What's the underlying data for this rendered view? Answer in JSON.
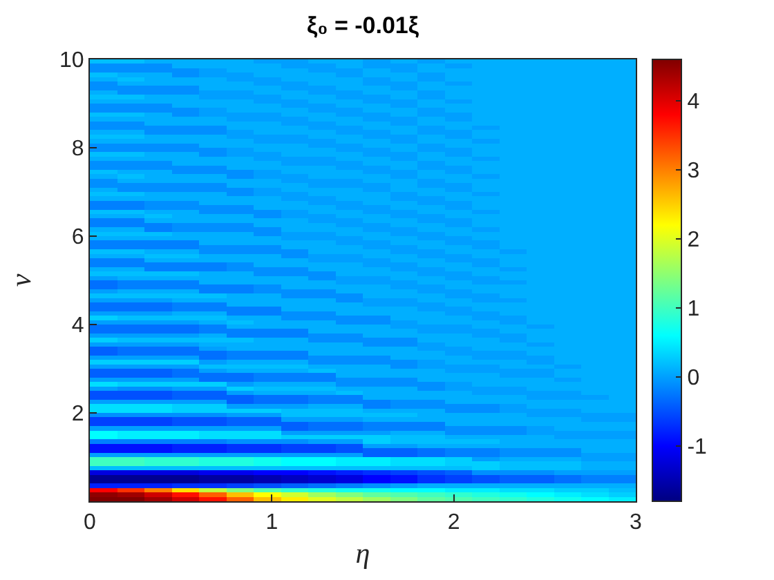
{
  "chart_data": {
    "type": "heatmap",
    "title": "ξ₀ = -0.01ξ",
    "xlabel": "η",
    "ylabel": "ν",
    "x": [
      0.075,
      0.225,
      0.375,
      0.525,
      0.675,
      0.825,
      0.975,
      1.125,
      1.275,
      1.425,
      1.575,
      1.725,
      1.875,
      2.025,
      2.175,
      2.325,
      2.475,
      2.625,
      2.775,
      2.925
    ],
    "xlim": [
      0,
      3
    ],
    "ylim": [
      0,
      10
    ],
    "xticks": [
      0,
      1,
      2,
      3
    ],
    "yticks": [
      2,
      4,
      6,
      8,
      10
    ],
    "clim": [
      -1.8,
      4.6
    ],
    "cticks": [
      -1,
      0,
      1,
      2,
      3,
      4
    ],
    "cells": [
      [
        0.2,
        0.2,
        0.1,
        0.1,
        0.1,
        0.1,
        0,
        0,
        0.1,
        0.1,
        0,
        0.1,
        0,
        0.1,
        0.1,
        0.1,
        0.1,
        0.1,
        0.1,
        0.1
      ],
      [
        -0.1,
        -0.1,
        -0.1,
        0.1,
        0.1,
        0.1,
        0.1,
        0,
        0,
        0.1,
        0,
        0,
        0.1,
        0,
        0.1,
        0.1,
        0.1,
        0.1,
        0.1,
        0.1
      ],
      [
        -0.1,
        -0.1,
        -0.1,
        -0.1,
        0,
        0.1,
        0.1,
        0.1,
        0,
        0,
        0.1,
        0,
        0.1,
        0.1,
        0.1,
        0.1,
        0.1,
        0.1,
        0.1,
        0.1
      ],
      [
        0.2,
        0.1,
        0.1,
        -0.1,
        0,
        0,
        0.1,
        0.1,
        0.1,
        0,
        0.1,
        0.1,
        0,
        0.1,
        0.1,
        0.1,
        0.1,
        0.1,
        0.1,
        0.1
      ],
      [
        0.1,
        0.2,
        0.1,
        0.1,
        0.1,
        0,
        0,
        0.1,
        0.1,
        0.1,
        0,
        0.1,
        0,
        0.1,
        0.1,
        0.1,
        0.1,
        0.1,
        0.1,
        0.1
      ],
      [
        -0.1,
        0.1,
        0.1,
        0.1,
        0.1,
        0.1,
        0,
        0,
        0.1,
        0.1,
        0,
        0,
        0.1,
        0,
        0.1,
        0.1,
        0.1,
        0.1,
        0.1,
        0.1
      ],
      [
        -0.1,
        -0.1,
        -0.1,
        -0.1,
        0.1,
        0.1,
        0.1,
        0,
        0,
        0.1,
        0.1,
        0,
        0.1,
        0.1,
        0.1,
        0.1,
        0.1,
        0.1,
        0.1,
        0.1
      ],
      [
        0.1,
        -0.1,
        -0.1,
        -0.1,
        0,
        0,
        0.1,
        0.1,
        0,
        0,
        0.1,
        0.1,
        0,
        0.1,
        0.1,
        0.1,
        0.1,
        0.1,
        0.1,
        0.1
      ],
      [
        0.2,
        0.2,
        0.1,
        0.1,
        0,
        0,
        0,
        0.1,
        0.1,
        0,
        0,
        0.1,
        0,
        0.1,
        0.1,
        0.1,
        0.1,
        0.1,
        0.1,
        0.1
      ],
      [
        0.1,
        0.1,
        0.1,
        0.1,
        0.1,
        0.1,
        0,
        0,
        0.1,
        0.1,
        0,
        0,
        0.1,
        0,
        0.1,
        0.1,
        0.1,
        0.1,
        0.1,
        0.1
      ],
      [
        -0.1,
        -0.1,
        -0.1,
        0.1,
        0.1,
        0.1,
        0.1,
        0,
        0,
        0.1,
        0.1,
        0,
        0.1,
        0.1,
        0.1,
        0.1,
        0.1,
        0.1,
        0.1,
        0.1
      ],
      [
        -0.1,
        -0.1,
        -0.1,
        -0.1,
        0,
        0.1,
        0.1,
        0.1,
        0,
        0,
        0.1,
        0.1,
        0,
        0.1,
        0.1,
        0.1,
        0.1,
        0.1,
        0.1,
        0.1
      ],
      [
        0.2,
        0.2,
        0.1,
        -0.1,
        0,
        0,
        0,
        0.1,
        0.1,
        0,
        0,
        0.1,
        0,
        0,
        0.1,
        0.1,
        0.1,
        0.1,
        0.1,
        0.1
      ],
      [
        0.1,
        0.1,
        0.1,
        0.1,
        0.1,
        0,
        0,
        0,
        0.1,
        0.1,
        0,
        0,
        0.1,
        0,
        0.1,
        0.1,
        0.1,
        0.1,
        0.1,
        0.1
      ],
      [
        -0.1,
        -0.1,
        0.1,
        0.1,
        0.1,
        0.1,
        0.1,
        0,
        0,
        0.1,
        0.1,
        0,
        0.1,
        0.1,
        0.1,
        0.1,
        0.1,
        0.1,
        0.1,
        0.1
      ],
      [
        -0.1,
        -0.1,
        -0.1,
        -0.1,
        -0.1,
        0.1,
        0.1,
        0.1,
        0,
        0,
        0.1,
        0.1,
        0,
        0.1,
        0,
        0.1,
        0.1,
        0.1,
        0.1,
        0.1
      ],
      [
        0.1,
        0.1,
        -0.1,
        -0.1,
        -0.1,
        0,
        0.1,
        0.1,
        0.1,
        0,
        0,
        0.1,
        0,
        0,
        0.1,
        0.1,
        0.1,
        0.1,
        0.1,
        0.1
      ],
      [
        0.2,
        0.2,
        0.1,
        0.1,
        0.1,
        0,
        0,
        0,
        0.1,
        0.1,
        0,
        0,
        0.1,
        0,
        0.1,
        0.1,
        0.1,
        0.1,
        0.1,
        0.1
      ],
      [
        0.1,
        0.1,
        0.1,
        0.1,
        0.1,
        0.1,
        0,
        0,
        0,
        0.1,
        0.1,
        0,
        0.1,
        0.1,
        0,
        0.1,
        0.1,
        0.1,
        0.1,
        0.1
      ],
      [
        -0.1,
        -0.1,
        -0.1,
        -0.1,
        0.1,
        0.1,
        0.1,
        0.1,
        0,
        0,
        0.1,
        0.1,
        0,
        0.1,
        0.1,
        0.1,
        0.1,
        0.1,
        0.1,
        0.1
      ],
      [
        -0.1,
        -0.1,
        -0.1,
        -0.1,
        -0.1,
        0,
        0.1,
        0.1,
        0.1,
        0,
        0,
        0.1,
        0,
        0,
        0.1,
        0.1,
        0.1,
        0.1,
        0.1,
        0.1
      ],
      [
        0.2,
        0.2,
        0.1,
        0.1,
        -0.1,
        0,
        0,
        0.1,
        0.1,
        0.1,
        0,
        0,
        0.1,
        0,
        0.1,
        0.1,
        0.1,
        0.1,
        0.1,
        0.1
      ],
      [
        0.1,
        0.1,
        0.1,
        0.1,
        0.1,
        0.1,
        0,
        0,
        0,
        0.1,
        0.1,
        0,
        0.1,
        0.1,
        0,
        0.1,
        0.1,
        0.1,
        0.1,
        0.1
      ],
      [
        -0.1,
        -0.1,
        -0.1,
        0.1,
        0.1,
        0.1,
        0.1,
        0,
        0,
        0,
        0.1,
        0.1,
        0,
        0.1,
        0.1,
        0.1,
        0.1,
        0.1,
        0.1,
        0.1
      ],
      [
        -0.1,
        -0.1,
        -0.1,
        -0.1,
        -0.1,
        0.1,
        0.1,
        0.1,
        0.1,
        0,
        0,
        0.1,
        0,
        0,
        0.1,
        0.1,
        0.1,
        0.1,
        0.1,
        0.1
      ],
      [
        0.2,
        0.1,
        0.1,
        -0.1,
        -0.1,
        -0.1,
        0,
        0.1,
        0.1,
        0.1,
        0,
        0,
        0.1,
        0,
        0.1,
        0.1,
        0.1,
        0.1,
        0.1,
        0.1
      ],
      [
        0.1,
        0.2,
        0.1,
        0.1,
        0.1,
        -0.1,
        0,
        0,
        0.1,
        0.1,
        0.1,
        0,
        0.1,
        0.1,
        0,
        0.1,
        0.1,
        0.1,
        0.1,
        0.1
      ],
      [
        -0.1,
        0.1,
        0.1,
        0.1,
        0.1,
        0.1,
        0.1,
        0,
        0,
        0,
        0.1,
        0.1,
        0,
        0.1,
        0.1,
        0.1,
        0.1,
        0.1,
        0.1,
        0.1
      ],
      [
        -0.1,
        -0.1,
        -0.1,
        -0.1,
        -0.1,
        0.1,
        0.1,
        0.1,
        0,
        0,
        0,
        0.1,
        0,
        0,
        0.1,
        0.1,
        0.1,
        0.1,
        0.1,
        0.1
      ],
      [
        0.1,
        -0.1,
        -0.1,
        -0.1,
        -0.1,
        -0.1,
        0,
        0.1,
        0.1,
        0.1,
        0,
        0.1,
        0.1,
        0,
        0.1,
        0.1,
        0.1,
        0.1,
        0.1,
        0.1
      ],
      [
        0.2,
        0.2,
        0.1,
        0.1,
        0.1,
        -0.1,
        0,
        0,
        0.1,
        0.1,
        0.1,
        0,
        0.1,
        0.1,
        0,
        0.1,
        0.1,
        0.1,
        0.1,
        0.1
      ],
      [
        0.1,
        0.1,
        0.1,
        0.1,
        0.1,
        0.1,
        0.1,
        0,
        0,
        0.1,
        0.1,
        0,
        0,
        0.1,
        0.1,
        0.1,
        0.1,
        0.1,
        0.1,
        0.1
      ],
      [
        -0.2,
        -0.2,
        -0.1,
        -0.1,
        0.1,
        0.1,
        0.1,
        0.1,
        0,
        0,
        0.1,
        0.1,
        0,
        0,
        0.1,
        0.1,
        0.1,
        0.1,
        0.1,
        0.1
      ],
      [
        -0.2,
        -0.2,
        -0.1,
        -0.1,
        -0.1,
        -0.1,
        0.1,
        0.1,
        0.1,
        0,
        0,
        0.1,
        0.1,
        0,
        0.1,
        0.1,
        0.1,
        0.1,
        0.1,
        0.1
      ],
      [
        0.2,
        0.2,
        0.1,
        0.1,
        -0.1,
        -0.1,
        -0.1,
        0,
        0.1,
        0.1,
        0,
        0,
        0.1,
        0.1,
        0,
        0.1,
        0.1,
        0.1,
        0.1,
        0.1
      ],
      [
        0.1,
        0.1,
        0.2,
        0.1,
        0.1,
        0.1,
        -0.1,
        0,
        0,
        0.1,
        0.1,
        0,
        0,
        0.1,
        0.1,
        0.1,
        0.1,
        0.1,
        0.1,
        0.1
      ],
      [
        -0.2,
        -0.2,
        0.1,
        0.1,
        0.1,
        0.1,
        0.1,
        0.1,
        0,
        0,
        0.1,
        0.1,
        0,
        0,
        0.1,
        0.1,
        0.1,
        0.1,
        0.1,
        0.1
      ],
      [
        -0.2,
        -0.2,
        -0.2,
        -0.1,
        -0.1,
        -0.1,
        0.1,
        0.1,
        0.1,
        0,
        0,
        0.1,
        0.1,
        0,
        0.1,
        0.1,
        0.1,
        0.1,
        0.1,
        0.1
      ],
      [
        0.1,
        0.1,
        -0.2,
        -0.1,
        -0.1,
        -0.1,
        -0.1,
        0.1,
        0.1,
        0.1,
        0,
        0,
        0.1,
        0.1,
        0,
        0.1,
        0.1,
        0.1,
        0.1,
        0.1
      ],
      [
        0.2,
        0.2,
        0.2,
        0.1,
        0.1,
        0.1,
        -0.1,
        0,
        0,
        0.1,
        0.1,
        0,
        0,
        0.1,
        0.1,
        0.1,
        0.1,
        0.1,
        0.1,
        0.1
      ],
      [
        0.1,
        0.1,
        0.1,
        0.1,
        0.1,
        0.1,
        0.1,
        0,
        0,
        0,
        0.1,
        0.1,
        0,
        0,
        0.1,
        0.1,
        0.1,
        0.1,
        0.1,
        0.1
      ],
      [
        -0.2,
        -0.2,
        -0.2,
        -0.2,
        0.1,
        0.1,
        0.1,
        0.1,
        0.1,
        0,
        0,
        0.1,
        0.1,
        0,
        0,
        0.1,
        0.1,
        0.1,
        0.1,
        0.1
      ],
      [
        -0.2,
        -0.2,
        -0.2,
        -0.2,
        -0.1,
        -0.1,
        -0.1,
        0.1,
        0.1,
        0.1,
        0,
        0,
        0.1,
        0.1,
        0,
        0.1,
        0.1,
        0.1,
        0.1,
        0.1
      ],
      [
        0.2,
        0.2,
        0.1,
        0.1,
        -0.1,
        -0.1,
        -0.1,
        -0.1,
        0.1,
        0.1,
        0.1,
        0,
        0,
        0.1,
        0.1,
        0,
        0.1,
        0.1,
        0.1,
        0.1
      ],
      [
        0.1,
        0.1,
        0.2,
        0.2,
        0.1,
        0.1,
        0.1,
        -0.1,
        0,
        0,
        0.1,
        0.1,
        0,
        0,
        0.1,
        0.1,
        0.1,
        0.1,
        0.1,
        0.1
      ],
      [
        -0.2,
        -0.2,
        0.1,
        0.1,
        0.1,
        0.1,
        0.1,
        0.1,
        0,
        0,
        0,
        0.1,
        0.1,
        0,
        0,
        0.1,
        0.1,
        0.1,
        0.1,
        0.1
      ],
      [
        -0.2,
        -0.2,
        -0.2,
        -0.2,
        -0.2,
        -0.1,
        0.1,
        0.1,
        0.1,
        0.1,
        0,
        0,
        0.1,
        0.1,
        0,
        0.1,
        0.1,
        0.1,
        0.1,
        0.1
      ],
      [
        0.1,
        0.1,
        -0.2,
        -0.2,
        -0.2,
        -0.1,
        -0.1,
        -0.1,
        0.1,
        0.1,
        0.1,
        0,
        0,
        0.1,
        0.1,
        0,
        0.1,
        0.1,
        0.1,
        0.1
      ],
      [
        0.2,
        0.2,
        0.2,
        0.2,
        0.1,
        0.1,
        -0.1,
        -0.1,
        -0.1,
        0.1,
        0.1,
        0.1,
        0,
        0,
        0.1,
        0.1,
        0.1,
        0.1,
        0.1,
        0.1
      ],
      [
        0,
        0.1,
        0.1,
        0.1,
        0.1,
        0.1,
        0.1,
        0.1,
        -0.1,
        0,
        0,
        0.1,
        0.1,
        0,
        0,
        0.1,
        0.1,
        0.1,
        0.1,
        0.1
      ],
      [
        -0.3,
        -0.2,
        -0.2,
        -0.2,
        0.1,
        0.1,
        0.1,
        0.1,
        0.1,
        0,
        0,
        0,
        0.1,
        0.1,
        0,
        0,
        0.1,
        0.1,
        0.1,
        0.1
      ],
      [
        -0.3,
        -0.2,
        -0.2,
        -0.2,
        -0.2,
        -0.2,
        -0.1,
        0.1,
        0.1,
        0.1,
        0.1,
        0,
        0,
        0.1,
        0.1,
        0.1,
        0.1,
        0.1,
        0.1,
        0.1
      ],
      [
        0,
        0.1,
        0.1,
        0.1,
        -0.2,
        -0.2,
        -0.1,
        -0.1,
        -0.1,
        0.1,
        0.1,
        0.1,
        0,
        0,
        0.1,
        0.1,
        0.1,
        0.1,
        0.1,
        0.1
      ],
      [
        0.2,
        0.2,
        0.2,
        0.2,
        0.2,
        0.1,
        0.1,
        -0.1,
        -0.1,
        -0.1,
        0.1,
        0.1,
        0.1,
        0,
        0,
        0.1,
        0.1,
        0.1,
        0.1,
        0.1
      ],
      [
        0,
        0,
        0,
        0.1,
        0.1,
        0.1,
        0.1,
        0.1,
        0.1,
        -0.1,
        0,
        0,
        0.1,
        0.1,
        0,
        0,
        0.1,
        0.1,
        0.1,
        0.1
      ],
      [
        -0.3,
        -0.3,
        -0.3,
        -0.2,
        -0.2,
        0.1,
        0.1,
        0.1,
        0.1,
        0.1,
        0,
        0,
        0,
        0.1,
        0.1,
        0.1,
        0.1,
        0.1,
        0.1,
        0.1
      ],
      [
        -0.3,
        -0.3,
        -0.3,
        -0.2,
        -0.2,
        -0.2,
        -0.2,
        0.1,
        0.1,
        0.1,
        0.1,
        0.1,
        0,
        0,
        0.1,
        0.1,
        0.1,
        0.1,
        0.1,
        0.1
      ],
      [
        0,
        0,
        0,
        0.1,
        0.1,
        -0.2,
        -0.2,
        -0.1,
        -0.1,
        0.1,
        0.1,
        0.1,
        0.1,
        0,
        0,
        0.1,
        0.1,
        0.1,
        0.1,
        0.1
      ],
      [
        0.3,
        0.2,
        0.2,
        0.2,
        0.2,
        0.1,
        0.1,
        -0.1,
        -0.1,
        -0.1,
        -0.1,
        0.1,
        0.1,
        0.1,
        0,
        0,
        0.1,
        0.1,
        0.1,
        0.1
      ],
      [
        0,
        0,
        0,
        0,
        0.1,
        0.2,
        0.1,
        0.1,
        0.1,
        -0.1,
        -0.1,
        0,
        0.1,
        0.1,
        0.1,
        0,
        0.1,
        0.1,
        0.1,
        0.1
      ],
      [
        -0.3,
        -0.3,
        -0.3,
        -0.3,
        -0.2,
        0.1,
        0.1,
        0.1,
        0.1,
        0.1,
        0.1,
        0,
        0,
        0,
        0.1,
        0.1,
        0,
        0.1,
        0.1,
        0.1
      ],
      [
        -0.3,
        -0.3,
        -0.3,
        -0.3,
        -0.2,
        -0.2,
        -0.2,
        -0.2,
        0.1,
        0.1,
        0.1,
        0.1,
        0,
        0,
        0,
        0.1,
        0.1,
        0.1,
        0.1,
        0.1
      ],
      [
        0,
        0,
        0,
        0,
        0.1,
        -0.2,
        -0.2,
        -0.2,
        -0.1,
        -0.1,
        0.1,
        0.1,
        0.1,
        0.1,
        0,
        0,
        0.1,
        0.1,
        0.1,
        0.1
      ],
      [
        0.3,
        0.2,
        0.2,
        0.2,
        0.2,
        0.2,
        0.1,
        0.1,
        -0.1,
        -0.1,
        -0.1,
        -0.1,
        0.1,
        0.1,
        0.1,
        0,
        0.1,
        0.1,
        0.1,
        0.1
      ],
      [
        0,
        0,
        0,
        0,
        0.1,
        0.1,
        0.1,
        0.1,
        0.1,
        0.1,
        -0.1,
        -0.1,
        0,
        0.1,
        0.1,
        0.1,
        0,
        0.1,
        0.1,
        0.1
      ],
      [
        -0.4,
        -0.3,
        -0.3,
        -0.3,
        0,
        0.1,
        0.1,
        0.1,
        0.1,
        0.1,
        0.1,
        0.1,
        0,
        0,
        0.1,
        0.1,
        0.1,
        0.1,
        0.1,
        0.1
      ],
      [
        -0.4,
        -0.3,
        -0.3,
        -0.3,
        -0.3,
        -0.2,
        -0.2,
        -0.2,
        0.1,
        0.1,
        0.1,
        0.1,
        0.1,
        0,
        0,
        0,
        0.1,
        0.1,
        0.1,
        0.1
      ],
      [
        0,
        0,
        0,
        0,
        -0.3,
        -0.2,
        -0.2,
        -0.2,
        -0.1,
        -0.1,
        -0.1,
        0.1,
        0.1,
        0.1,
        0,
        0,
        0,
        0.1,
        0.1,
        0.1
      ],
      [
        0.3,
        0.3,
        0.3,
        0.3,
        0,
        0.1,
        0.1,
        0.1,
        -0.1,
        -0.1,
        -0.1,
        -0.1,
        0,
        0.1,
        0.1,
        0.1,
        0,
        0.1,
        0.1,
        0.1
      ],
      [
        0,
        0,
        0,
        0,
        0.2,
        0.2,
        0.2,
        0.2,
        0.1,
        0.1,
        0.1,
        -0.1,
        0,
        0,
        0,
        0.1,
        0.1,
        0,
        0.1,
        0.1
      ],
      [
        -0.4,
        -0.4,
        -0.4,
        -0.3,
        0,
        0.1,
        0.1,
        0.1,
        0.2,
        0.1,
        0.1,
        0.1,
        0.1,
        0,
        0,
        0,
        0,
        0.1,
        0.1,
        0.1
      ],
      [
        -0.4,
        -0.4,
        -0.4,
        -0.3,
        -0.3,
        -0.3,
        -0.2,
        -0.2,
        -0.2,
        0.1,
        0.1,
        0.1,
        0.1,
        0.1,
        0.1,
        0,
        0,
        0.1,
        0.1,
        0.1
      ],
      [
        0,
        0,
        0,
        0,
        -0.3,
        -0.3,
        -0.2,
        -0.2,
        -0.2,
        -0.1,
        -0.1,
        -0.1,
        0.1,
        0.1,
        0.1,
        0.1,
        0.1,
        0,
        0.1,
        0.1
      ],
      [
        0.4,
        0.3,
        0.3,
        0.3,
        0.3,
        0,
        0.1,
        0.1,
        0.1,
        -0.1,
        -0.1,
        -0.1,
        -0.1,
        0,
        0.1,
        0.1,
        0.1,
        0.1,
        0.1,
        0.1
      ],
      [
        0,
        -0.1,
        -0.1,
        0,
        0,
        0.3,
        0.2,
        0.2,
        0.2,
        0.1,
        0.1,
        0.1,
        -0.1,
        0,
        0,
        0,
        0.1,
        0.1,
        0.1,
        0.1
      ],
      [
        -0.5,
        -0.5,
        -0.5,
        -0.4,
        -0.4,
        0,
        0.1,
        0.1,
        0.1,
        0.2,
        0.1,
        0.1,
        0.1,
        0.1,
        0,
        0,
        0,
        0,
        0.1,
        0.1
      ],
      [
        -0.5,
        -0.5,
        -0.5,
        -0.4,
        -0.4,
        -0.4,
        -0.3,
        -0.3,
        -0.2,
        -0.2,
        0.1,
        0.1,
        0.1,
        0.1,
        0.1,
        0.1,
        0,
        0,
        0,
        0.1
      ],
      [
        0,
        0,
        0,
        0,
        0,
        -0.4,
        -0.3,
        -0.3,
        -0.2,
        -0.2,
        -0.2,
        -0.1,
        -0.1,
        0.1,
        0.1,
        0.1,
        0.1,
        0.1,
        0.1,
        0.1
      ],
      [
        0.4,
        0.4,
        0.4,
        0.3,
        0.3,
        0,
        0,
        0,
        0.1,
        0.1,
        -0.2,
        -0.1,
        -0.1,
        -0.1,
        -0.1,
        0,
        0.1,
        0.1,
        0.1,
        0.1
      ],
      [
        0.4,
        0.4,
        0.4,
        0.3,
        0.3,
        0.3,
        0.3,
        0.2,
        0.2,
        0.2,
        0.1,
        0.1,
        0.1,
        -0.1,
        -0.1,
        0,
        0,
        0,
        0.1,
        0.1
      ],
      [
        -0.1,
        -0.1,
        -0.1,
        -0.1,
        -0.1,
        0,
        0,
        0.2,
        0.2,
        0.2,
        0.2,
        0.2,
        0.1,
        0.1,
        0.1,
        0.1,
        0,
        0,
        0,
        0
      ],
      [
        -0.6,
        -0.6,
        -0.6,
        -0.5,
        -0.5,
        -0.4,
        -0.4,
        0,
        0,
        0,
        0.1,
        0.1,
        0.1,
        0.1,
        0.1,
        0.1,
        0.1,
        0.1,
        0,
        0
      ],
      [
        -0.6,
        -0.6,
        -0.6,
        -0.5,
        -0.5,
        -0.4,
        -0.4,
        -0.4,
        -0.3,
        -0.3,
        -0.2,
        -0.2,
        -0.2,
        0.1,
        0.1,
        0.1,
        0.1,
        0.1,
        0.1,
        0.1
      ],
      [
        0,
        0,
        0,
        0,
        0,
        0,
        0,
        -0.4,
        -0.3,
        -0.3,
        -0.2,
        -0.2,
        -0.2,
        -0.1,
        -0.1,
        -0.1,
        0,
        0.1,
        0.1,
        0.1
      ],
      [
        0.6,
        0.5,
        0.5,
        0.5,
        0.4,
        0.4,
        0.4,
        0,
        0,
        0,
        0,
        0.1,
        0.1,
        -0.1,
        -0.1,
        -0.1,
        0,
        0,
        0,
        0
      ],
      [
        0.6,
        0.5,
        0.5,
        0.5,
        0.4,
        0.4,
        0.4,
        0.3,
        0.3,
        0.3,
        0.3,
        0.2,
        0.2,
        0.1,
        0.1,
        0.1,
        0.1,
        0,
        0,
        0
      ],
      [
        -0.2,
        -0.2,
        -0.2,
        -0.2,
        -0.2,
        -0.1,
        -0.1,
        -0.1,
        0,
        0,
        0.3,
        0.2,
        0.2,
        0.2,
        0.2,
        0.1,
        0.1,
        0.1,
        0.1,
        0.1
      ],
      [
        -0.9,
        -0.9,
        -0.9,
        -0.8,
        -0.8,
        -0.7,
        -0.7,
        -0.6,
        -0.6,
        -0.5,
        0,
        0,
        0.1,
        0.1,
        0.1,
        0.1,
        0.1,
        0.1,
        0.1,
        0.1
      ],
      [
        -0.9,
        -0.9,
        -0.9,
        -0.8,
        -0.8,
        -0.7,
        -0.7,
        -0.6,
        -0.6,
        -0.5,
        -0.4,
        -0.4,
        -0.3,
        -0.2,
        -0.2,
        -0.1,
        -0.1,
        -0.1,
        0.1,
        0.1
      ],
      [
        0,
        0,
        0,
        0,
        0,
        0,
        0,
        0,
        0,
        0,
        -0.4,
        -0.4,
        -0.3,
        -0.2,
        -0.2,
        -0.1,
        -0.1,
        -0.1,
        0,
        0
      ],
      [
        1.0,
        1.0,
        0.9,
        0.9,
        0.8,
        0.8,
        0.7,
        0.6,
        0.6,
        0.5,
        0.5,
        0.4,
        0.4,
        0.3,
        0,
        0.1,
        0.1,
        0.1,
        0,
        0
      ],
      [
        1.0,
        1.0,
        0.9,
        0.9,
        0.8,
        0.8,
        0.7,
        0.6,
        0.6,
        0.5,
        0.5,
        0.4,
        0.4,
        0.3,
        0.3,
        0.2,
        0.2,
        0.2,
        0.1,
        0.1
      ],
      [
        0.2,
        0.2,
        0.2,
        0.2,
        0.2,
        0.2,
        0.2,
        0.2,
        0.2,
        0.2,
        0.2,
        0.2,
        0.2,
        0.2,
        0.3,
        0.2,
        0.2,
        0.2,
        0.1,
        0.1
      ],
      [
        -1.2,
        -1.2,
        -1.2,
        -1.2,
        -1.1,
        -1.1,
        -1.0,
        -1.0,
        -0.9,
        -0.8,
        -0.7,
        -0.6,
        -0.5,
        -0.4,
        -0.1,
        -0.1,
        -0.1,
        0,
        0,
        0
      ],
      [
        -1.7,
        -1.7,
        -1.7,
        -1.7,
        -1.6,
        -1.6,
        -1.5,
        -1.4,
        -1.3,
        -1.2,
        -1.0,
        -0.9,
        -0.7,
        -0.6,
        -0.5,
        -0.4,
        -0.4,
        -0.3,
        -0.2,
        -0.2
      ],
      [
        -1.7,
        -1.7,
        -1.7,
        -1.7,
        -1.6,
        -1.6,
        -1.5,
        -1.4,
        -1.3,
        -1.2,
        -1.0,
        -0.9,
        -0.7,
        -0.6,
        -0.5,
        -0.4,
        -0.4,
        -0.3,
        -0.2,
        -0.2
      ],
      [
        -0.8,
        -0.8,
        -0.8,
        -0.7,
        -0.7,
        -0.6,
        -0.5,
        -0.4,
        -0.3,
        -0.2,
        -0.1,
        0,
        0.1,
        0.1,
        0.1,
        0.1,
        0.1,
        0.1,
        0.1,
        0.1
      ],
      [
        3.8,
        3.5,
        3.0,
        2.4,
        1.8,
        1.4,
        1.1,
        0.9,
        0.8,
        0.7,
        0.7,
        0.6,
        0.6,
        0.5,
        0.5,
        0.4,
        0.4,
        0.3,
        0.3,
        0.2
      ],
      [
        4.5,
        4.4,
        4.1,
        3.7,
        3.2,
        2.6,
        2.2,
        1.9,
        1.6,
        1.4,
        1.2,
        1.1,
        1.0,
        0.9,
        0.8,
        0.7,
        0.6,
        0.5,
        0.4,
        0.3
      ],
      [
        4.6,
        4.6,
        4.4,
        4.1,
        3.7,
        3.2,
        2.6,
        2.3,
        2.0,
        1.8,
        1.6,
        1.4,
        1.2,
        1.1,
        1.0,
        0.9,
        0.8,
        0.7,
        0.6,
        0.5
      ]
    ]
  }
}
